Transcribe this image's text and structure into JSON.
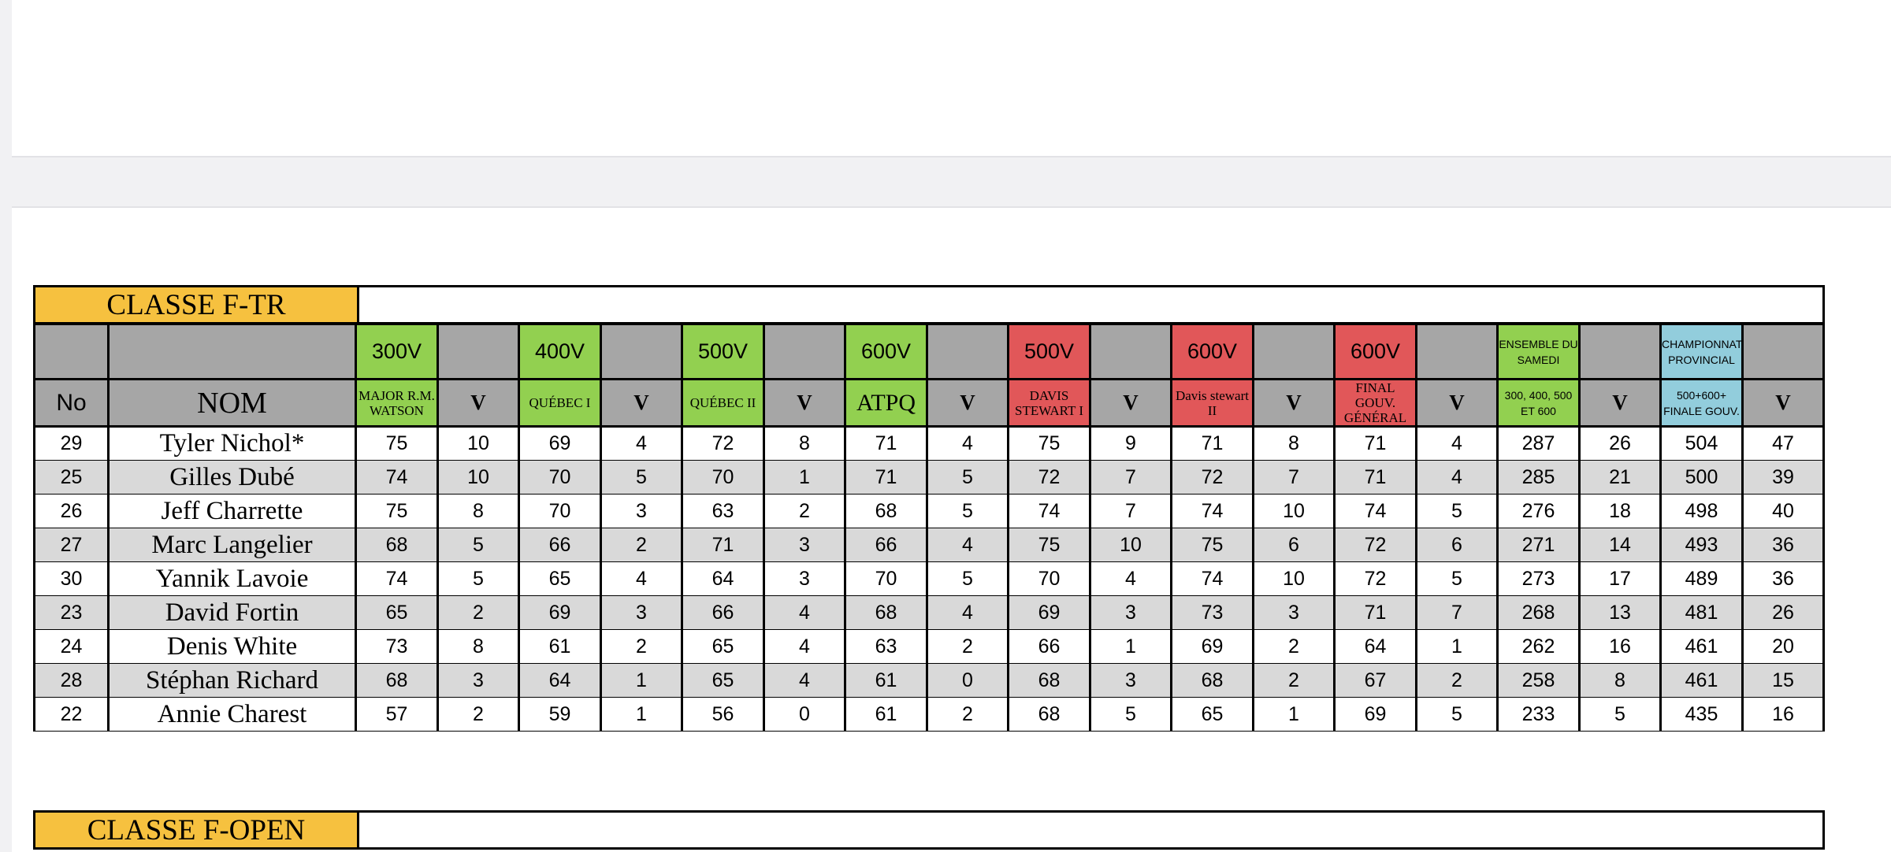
{
  "sections": {
    "ftr_title": "CLASSE F-TR",
    "fopen_title": "CLASSE F-OPEN"
  },
  "header": {
    "no_label": "No",
    "name_label": "NOM",
    "v_label": "V",
    "matches": [
      {
        "dist": "300V",
        "name": "MAJOR R.M. WATSON",
        "color": "#92d050"
      },
      {
        "dist": "400V",
        "name": "QUÉBEC I",
        "color": "#92d050"
      },
      {
        "dist": "500V",
        "name": "QUÉBEC II",
        "color": "#92d050"
      },
      {
        "dist": "600V",
        "name": "ATPQ",
        "color": "#92d050"
      },
      {
        "dist": "500V",
        "name": "DAVIS STEWART I",
        "color": "#e15759"
      },
      {
        "dist": "600V",
        "name": "Davis stewart II",
        "color": "#e15759"
      },
      {
        "dist": "600V",
        "name": "FINAL GOUV. GÉNÉRAL",
        "color": "#e15759"
      },
      {
        "dist": "ENSEMBLE DU SAMEDI",
        "name": "300, 400, 500 ET 600",
        "color": "#92d050"
      },
      {
        "dist": "CHAMPIONNAT PROVINCIAL",
        "name": "500+600+ FINALE GOUV.",
        "color": "#92cddc"
      }
    ]
  },
  "rows": [
    {
      "no": "29",
      "name": "Tyler Nichol*",
      "scores": [
        "75",
        "10",
        "69",
        "4",
        "72",
        "8",
        "71",
        "4",
        "75",
        "9",
        "71",
        "8",
        "71",
        "4",
        "287",
        "26",
        "504",
        "47"
      ]
    },
    {
      "no": "25",
      "name": "Gilles Dubé",
      "scores": [
        "74",
        "10",
        "70",
        "5",
        "70",
        "1",
        "71",
        "5",
        "72",
        "7",
        "72",
        "7",
        "71",
        "4",
        "285",
        "21",
        "500",
        "39"
      ]
    },
    {
      "no": "26",
      "name": "Jeff Charrette",
      "scores": [
        "75",
        "8",
        "70",
        "3",
        "63",
        "2",
        "68",
        "5",
        "74",
        "7",
        "74",
        "10",
        "74",
        "5",
        "276",
        "18",
        "498",
        "40"
      ]
    },
    {
      "no": "27",
      "name": "Marc Langelier",
      "scores": [
        "68",
        "5",
        "66",
        "2",
        "71",
        "3",
        "66",
        "4",
        "75",
        "10",
        "75",
        "6",
        "72",
        "6",
        "271",
        "14",
        "493",
        "36"
      ]
    },
    {
      "no": "30",
      "name": "Yannik Lavoie",
      "scores": [
        "74",
        "5",
        "65",
        "4",
        "64",
        "3",
        "70",
        "5",
        "70",
        "4",
        "74",
        "10",
        "72",
        "5",
        "273",
        "17",
        "489",
        "36"
      ]
    },
    {
      "no": "23",
      "name": "David Fortin",
      "scores": [
        "65",
        "2",
        "69",
        "3",
        "66",
        "4",
        "68",
        "4",
        "69",
        "3",
        "73",
        "3",
        "71",
        "7",
        "268",
        "13",
        "481",
        "26"
      ]
    },
    {
      "no": "24",
      "name": "Denis White",
      "scores": [
        "73",
        "8",
        "61",
        "2",
        "65",
        "4",
        "63",
        "2",
        "66",
        "1",
        "69",
        "2",
        "64",
        "1",
        "262",
        "16",
        "461",
        "20"
      ]
    },
    {
      "no": "28",
      "name": "Stéphan Richard",
      "scores": [
        "68",
        "3",
        "64",
        "1",
        "65",
        "4",
        "61",
        "0",
        "68",
        "3",
        "68",
        "2",
        "67",
        "2",
        "258",
        "8",
        "461",
        "15"
      ]
    },
    {
      "no": "22",
      "name": "Annie Charest",
      "scores": [
        "57",
        "2",
        "59",
        "1",
        "56",
        "0",
        "61",
        "2",
        "68",
        "5",
        "65",
        "1",
        "69",
        "5",
        "233",
        "5",
        "435",
        "16"
      ]
    }
  ]
}
